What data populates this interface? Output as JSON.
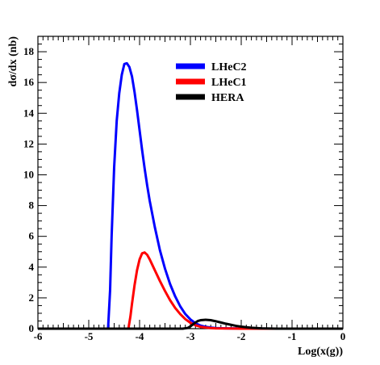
{
  "chart_data": {
    "type": "line",
    "xlabel": "Log(x(g))",
    "ylabel": "dσ/dx (nb)",
    "xlim": [
      -6,
      0
    ],
    "ylim": [
      0,
      19
    ],
    "x_ticks": [
      "-6",
      "-5",
      "-4",
      "-3",
      "-2",
      "-1",
      "0"
    ],
    "y_ticks": [
      "0",
      "2",
      "4",
      "6",
      "8",
      "10",
      "12",
      "14",
      "16",
      "18"
    ],
    "legend_position": "top-right",
    "grid": false,
    "series": [
      {
        "name": "LHeC2",
        "color": "#0000ff",
        "x": [
          -6,
          -4.62,
          -4.58,
          -4.55,
          -4.5,
          -4.45,
          -4.4,
          -4.35,
          -4.3,
          -4.25,
          -4.2,
          -4.15,
          -4.1,
          -4.05,
          -4.0,
          -3.95,
          -3.9,
          -3.85,
          -3.8,
          -3.7,
          -3.6,
          -3.5,
          -3.4,
          -3.3,
          -3.2,
          -3.1,
          -3.0,
          -2.9,
          -2.8,
          -2.7,
          -2.6,
          -2.5,
          -2.3,
          -2.0,
          -1.5,
          -1.0,
          0
        ],
        "y": [
          0,
          0,
          2.5,
          6.0,
          10.5,
          13.5,
          15.3,
          16.5,
          17.2,
          17.25,
          17.0,
          16.4,
          15.4,
          14.2,
          12.9,
          11.6,
          10.4,
          9.3,
          8.3,
          6.6,
          5.1,
          3.9,
          2.9,
          2.1,
          1.45,
          0.95,
          0.6,
          0.35,
          0.2,
          0.12,
          0.07,
          0.04,
          0.02,
          0.01,
          0,
          0,
          0
        ]
      },
      {
        "name": "LHeC1",
        "color": "#ff0000",
        "x": [
          -6,
          -4.22,
          -4.18,
          -4.15,
          -4.1,
          -4.05,
          -4.0,
          -3.95,
          -3.9,
          -3.85,
          -3.8,
          -3.75,
          -3.7,
          -3.6,
          -3.5,
          -3.4,
          -3.3,
          -3.2,
          -3.1,
          -3.0,
          -2.9,
          -2.8,
          -2.7,
          -2.6,
          -2.5,
          -2.3,
          -2.0,
          -1.5,
          0
        ],
        "y": [
          0,
          0,
          0.8,
          1.6,
          2.8,
          3.8,
          4.5,
          4.9,
          4.95,
          4.8,
          4.5,
          4.15,
          3.8,
          3.1,
          2.45,
          1.85,
          1.35,
          0.95,
          0.62,
          0.38,
          0.22,
          0.12,
          0.07,
          0.04,
          0.02,
          0.01,
          0,
          0,
          0
        ]
      },
      {
        "name": "HERA",
        "color": "#000000",
        "x": [
          -6,
          -3.15,
          -3.05,
          -3.0,
          -2.95,
          -2.9,
          -2.85,
          -2.8,
          -2.7,
          -2.6,
          -2.5,
          -2.4,
          -2.3,
          -2.2,
          -2.1,
          -2.0,
          -1.9,
          -1.8,
          -1.7,
          -1.6,
          -1.5,
          -1.3,
          0
        ],
        "y": [
          0,
          0,
          0.05,
          0.15,
          0.28,
          0.4,
          0.5,
          0.55,
          0.58,
          0.55,
          0.48,
          0.4,
          0.32,
          0.25,
          0.18,
          0.13,
          0.09,
          0.06,
          0.04,
          0.02,
          0.01,
          0,
          0
        ]
      }
    ]
  }
}
